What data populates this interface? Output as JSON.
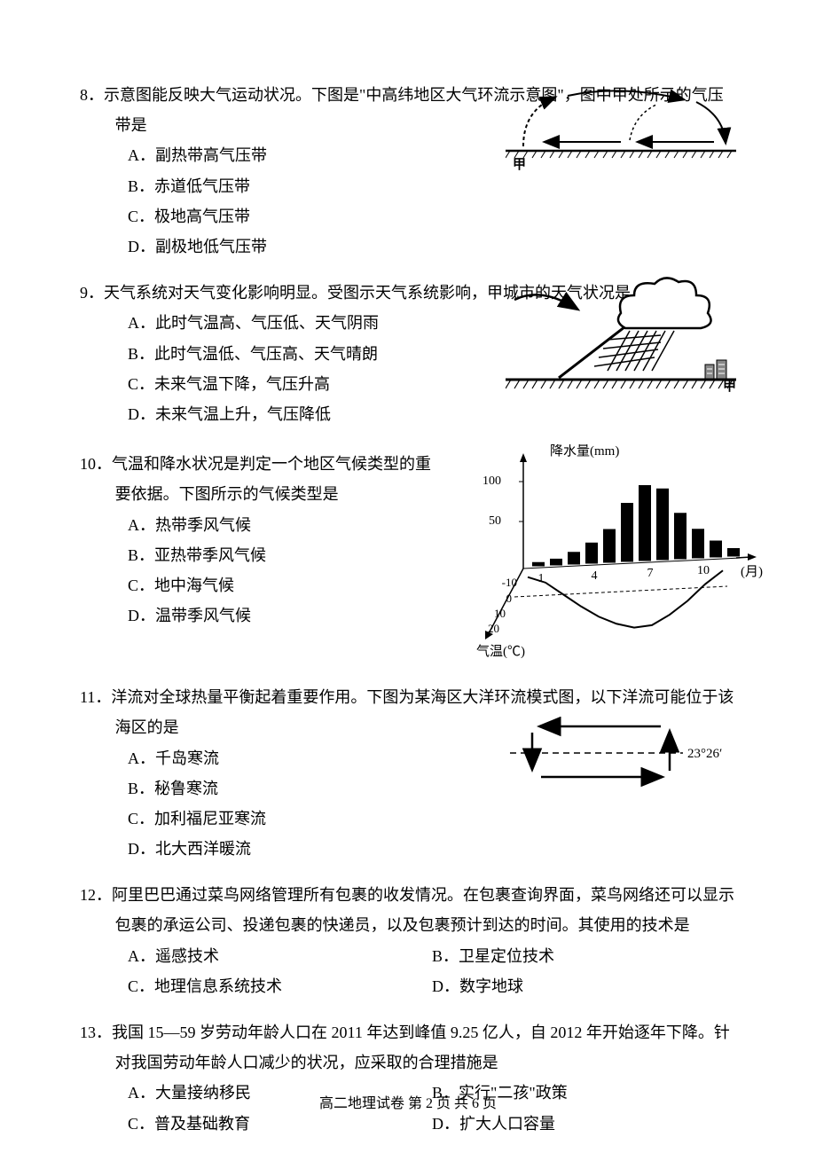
{
  "questions": {
    "q8": {
      "num": "8．",
      "stem": "示意图能反映大气运动状况。下图是\"中高纬地区大气环流示意图\"，图中甲处所示的气压带是",
      "options": {
        "a": "A．副热带高气压带",
        "b": "B．赤道低气压带",
        "c": "C．极地高气压带",
        "d": "D．副极地低气压带"
      },
      "figure_label": "甲"
    },
    "q9": {
      "num": "9．",
      "stem": "天气系统对天气变化影响明显。受图示天气系统影响，甲城市的天气状况是",
      "options": {
        "a": "A．此时气温高、气压低、天气阴雨",
        "b": "B．此时气温低、气压高、天气晴朗",
        "c": "C．未来气温下降，气压升高",
        "d": "D．未来气温上升，气压降低"
      },
      "figure_label": "甲"
    },
    "q10": {
      "num": "10．",
      "stem": "气温和降水状况是判定一个地区气候类型的重要依据。下图所示的气候类型是",
      "options": {
        "a": "A．热带季风气候",
        "b": "B．亚热带季风气候",
        "c": "C．地中海气候",
        "d": "D．温带季风气候"
      },
      "chart": {
        "precipitation_label": "降水量(mm)",
        "temperature_label": "气温(℃)",
        "month_label": "(月)",
        "y_precip_ticks": [
          "50",
          "100"
        ],
        "y_temp_ticks": [
          "-10",
          "0",
          "10",
          "20"
        ],
        "x_ticks": [
          "1",
          "4",
          "7",
          "10"
        ],
        "precip_values": [
          5,
          8,
          15,
          25,
          40,
          70,
          90,
          85,
          55,
          35,
          20,
          10
        ],
        "temp_values": [
          -12,
          -8,
          0,
          8,
          15,
          20,
          23,
          22,
          16,
          8,
          -2,
          -10
        ],
        "bar_color": "#000000",
        "line_color": "#000000"
      }
    },
    "q11": {
      "num": "11．",
      "stem": "洋流对全球热量平衡起着重要作用。下图为某海区大洋环流模式图，以下洋流可能位于该海区的是",
      "options": {
        "a": "A．千岛寒流",
        "b": "B．秘鲁寒流",
        "c": "C．加利福尼亚寒流",
        "d": "D．北大西洋暖流"
      },
      "figure_label": "23°26′"
    },
    "q12": {
      "num": "12．",
      "stem": "阿里巴巴通过菜鸟网络管理所有包裹的收发情况。在包裹查询界面，菜鸟网络还可以显示包裹的承运公司、投递包裹的快递员，以及包裹预计到达的时间。其使用的技术是",
      "options": {
        "a": "A．遥感技术",
        "b": "B．卫星定位技术",
        "c": "C．地理信息系统技术",
        "d": "D．数字地球"
      }
    },
    "q13": {
      "num": "13．",
      "stem": "我国 15—59 岁劳动年龄人口在 2011 年达到峰值 9.25 亿人，自 2012 年开始逐年下降。针对我国劳动年龄人口减少的状况，应采取的合理措施是",
      "options": {
        "a": "A．大量接纳移民",
        "b": "B．实行\"二孩\"政策",
        "c": "C．普及基础教育",
        "d": "D．扩大人口容量"
      }
    }
  },
  "footer": "高二地理试卷  第 2 页  共 6 页"
}
